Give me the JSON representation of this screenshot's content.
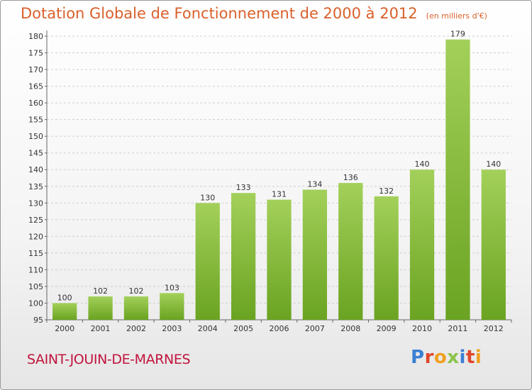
{
  "title": "Dotation Globale de Fonctionnement de 2000 à 2012",
  "unit_note": "(en milliers d'€)",
  "commune": "SAINT-JOUIN-DE-MARNES",
  "logo": {
    "text": "Proxiti",
    "letters": [
      {
        "ch": "P",
        "color": "#3b7fd4"
      },
      {
        "ch": "r",
        "color": "#e0462b"
      },
      {
        "ch": "o",
        "color": "#f0a020"
      },
      {
        "ch": "x",
        "color": "#8bc34a"
      },
      {
        "ch": "i",
        "color": "#3b7fd4"
      },
      {
        "ch": "t",
        "color": "#e0462b"
      },
      {
        "ch": "i",
        "color": "#f0a020"
      }
    ]
  },
  "colors": {
    "bar_light": "#a3d05a",
    "bar_dark": "#6aa321",
    "title": "#d9602b",
    "commune": "#c0143c"
  },
  "chart_data": {
    "type": "bar",
    "categories": [
      "2000",
      "2001",
      "2002",
      "2003",
      "2004",
      "2005",
      "2006",
      "2007",
      "2008",
      "2009",
      "2010",
      "2011",
      "2012"
    ],
    "values": [
      100,
      102,
      102,
      103,
      130,
      133,
      131,
      134,
      136,
      132,
      140,
      179,
      140
    ],
    "ylim": [
      95,
      180
    ],
    "yticks": [
      95,
      100,
      105,
      110,
      115,
      120,
      125,
      130,
      135,
      140,
      145,
      150,
      155,
      160,
      165,
      170,
      175,
      180
    ],
    "grid": true,
    "data_labels": true
  }
}
